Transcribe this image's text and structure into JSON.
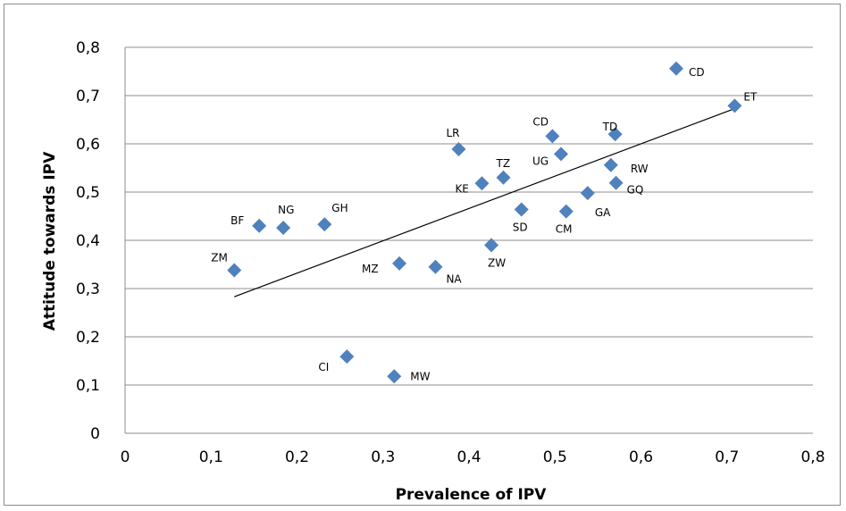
{
  "chart_data": {
    "type": "scatter",
    "xlabel": "Prevalence of IPV",
    "ylabel": "Attitude towards IPV",
    "xlim": [
      0,
      0.8
    ],
    "ylim": [
      0,
      0.8
    ],
    "x_ticks": [
      "0",
      "0,1",
      "0,2",
      "0,3",
      "0,4",
      "0,5",
      "0,6",
      "0,7",
      "0,8"
    ],
    "y_ticks": [
      "0",
      "0,1",
      "0,2",
      "0,3",
      "0,4",
      "0,5",
      "0,6",
      "0,7",
      "0,8"
    ],
    "grid": "horizontal",
    "marker_color": "#4f81bd",
    "points": [
      {
        "label": "ZM",
        "x": 0.127,
        "y": 0.338
      },
      {
        "label": "BF",
        "x": 0.156,
        "y": 0.43
      },
      {
        "label": "NG",
        "x": 0.184,
        "y": 0.426
      },
      {
        "label": "GH",
        "x": 0.232,
        "y": 0.433
      },
      {
        "label": "CI",
        "x": 0.258,
        "y": 0.159
      },
      {
        "label": "MW",
        "x": 0.313,
        "y": 0.118
      },
      {
        "label": "MZ",
        "x": 0.319,
        "y": 0.352
      },
      {
        "label": "NA",
        "x": 0.361,
        "y": 0.345
      },
      {
        "label": "LR",
        "x": 0.388,
        "y": 0.589
      },
      {
        "label": "KE",
        "x": 0.415,
        "y": 0.518
      },
      {
        "label": "ZW",
        "x": 0.426,
        "y": 0.39
      },
      {
        "label": "TZ",
        "x": 0.44,
        "y": 0.53
      },
      {
        "label": "SD",
        "x": 0.461,
        "y": 0.464
      },
      {
        "label": "CD",
        "x": 0.497,
        "y": 0.616
      },
      {
        "label": "UG",
        "x": 0.507,
        "y": 0.579
      },
      {
        "label": "CM",
        "x": 0.513,
        "y": 0.46
      },
      {
        "label": "GA",
        "x": 0.538,
        "y": 0.498
      },
      {
        "label": "RW",
        "x": 0.565,
        "y": 0.556
      },
      {
        "label": "TD",
        "x": 0.57,
        "y": 0.62
      },
      {
        "label": "GQ",
        "x": 0.571,
        "y": 0.519
      },
      {
        "label": "CD",
        "x": 0.641,
        "y": 0.756
      },
      {
        "label": "ET",
        "x": 0.709,
        "y": 0.679
      }
    ],
    "trendline": {
      "type": "linear",
      "x_start": 0.127,
      "y_start": 0.283,
      "x_end": 0.709,
      "y_end": 0.673
    }
  }
}
